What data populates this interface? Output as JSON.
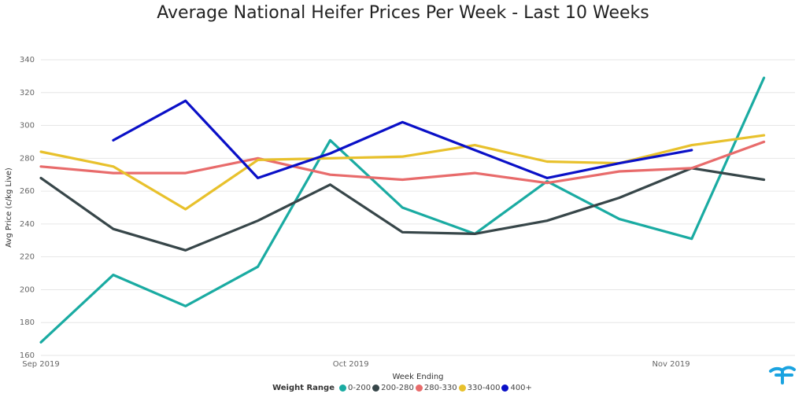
{
  "chart_data": {
    "type": "line",
    "title": "Average National Heifer Prices Per Week - Last 10 Weeks",
    "xlabel": "Week Ending",
    "ylabel": "Avg Price (c/kg Live)",
    "ylim": [
      160,
      340
    ],
    "y_ticks": [
      160,
      180,
      200,
      220,
      240,
      260,
      280,
      300,
      320,
      340
    ],
    "x_tick_labels": [
      "Sep 2019",
      "Oct 2019",
      "Nov 2019"
    ],
    "x_ticks": [
      "2019-09-01",
      "2019-10-01",
      "2019-11-01"
    ],
    "x_range": [
      "2019-09-01",
      "2019-11-13"
    ],
    "x": [
      "2019-09-01",
      "2019-09-08",
      "2019-09-15",
      "2019-09-22",
      "2019-09-29",
      "2019-10-06",
      "2019-10-13",
      "2019-10-20",
      "2019-10-27",
      "2019-11-03",
      "2019-11-10"
    ],
    "grid": true,
    "legend_title": "Weight Range",
    "legend_position": "bottom",
    "series": [
      {
        "name": "0-200",
        "color": "#1aaba2",
        "values": [
          168,
          209,
          190,
          214,
          291,
          250,
          234,
          266,
          243,
          231,
          329
        ]
      },
      {
        "name": "200-280",
        "color": "#374649",
        "values": [
          268,
          237,
          224,
          242,
          264,
          235,
          234,
          242,
          256,
          274,
          267
        ]
      },
      {
        "name": "280-330",
        "color": "#e86b6b",
        "values": [
          275,
          271,
          271,
          280,
          270,
          267,
          271,
          265,
          272,
          274,
          290
        ]
      },
      {
        "name": "330-400",
        "color": "#e8c12c",
        "values": [
          284,
          275,
          249,
          279,
          280,
          281,
          288,
          278,
          277,
          288,
          294
        ]
      },
      {
        "name": "400+",
        "color": "#0a10c7",
        "values": [
          null,
          291,
          315,
          268,
          283,
          302,
          285,
          268,
          277,
          285,
          null
        ]
      }
    ]
  },
  "logo": {
    "name": "brand-logo",
    "color": "#1aa3e0"
  }
}
